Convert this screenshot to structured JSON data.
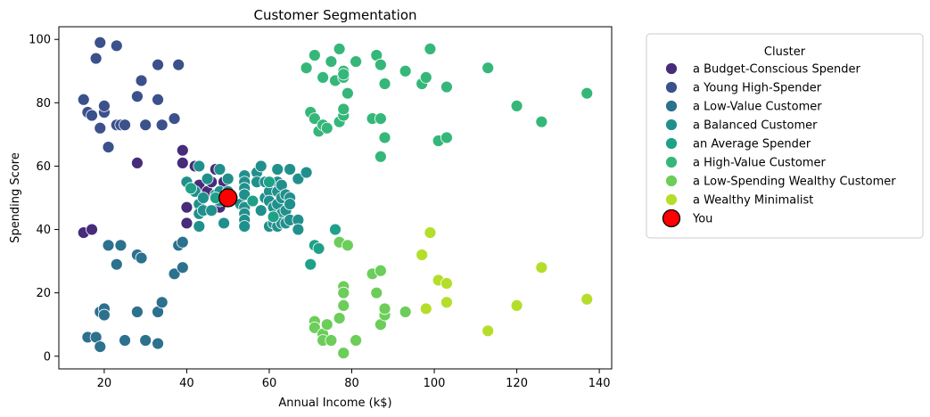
{
  "chart_data": {
    "type": "scatter",
    "title": "Customer Segmentation",
    "xlabel": "Annual Income (k$)",
    "ylabel": "Spending Score",
    "xlim": [
      9,
      143
    ],
    "ylim": [
      -4,
      104
    ],
    "xticks": [
      20,
      40,
      60,
      80,
      100,
      120,
      140
    ],
    "yticks": [
      0,
      20,
      40,
      60,
      80,
      100
    ],
    "grid": false,
    "legend": {
      "title": "Cluster",
      "placement": "outside-right"
    },
    "series": [
      {
        "name": "a Budget-Conscious Spender",
        "color": "#472c7a",
        "points": [
          [
            15,
            39
          ],
          [
            17,
            40
          ],
          [
            28,
            61
          ],
          [
            39,
            65
          ],
          [
            39,
            61
          ],
          [
            40,
            47
          ],
          [
            40,
            42
          ],
          [
            42,
            60
          ],
          [
            43,
            54
          ],
          [
            45,
            52
          ],
          [
            46,
            55
          ],
          [
            47,
            59
          ],
          [
            48,
            47
          ],
          [
            49,
            55
          ]
        ]
      },
      {
        "name": "a Young High-Spender",
        "color": "#3b518b",
        "points": [
          [
            15,
            81
          ],
          [
            16,
            77
          ],
          [
            17,
            76
          ],
          [
            19,
            99
          ],
          [
            18,
            94
          ],
          [
            19,
            72
          ],
          [
            20,
            77
          ],
          [
            20,
            79
          ],
          [
            21,
            66
          ],
          [
            23,
            98
          ],
          [
            23,
            73
          ],
          [
            24,
            73
          ],
          [
            25,
            73
          ],
          [
            28,
            82
          ],
          [
            29,
            87
          ],
          [
            30,
            73
          ],
          [
            33,
            92
          ],
          [
            33,
            81
          ],
          [
            34,
            73
          ],
          [
            37,
            75
          ],
          [
            38,
            92
          ]
        ]
      },
      {
        "name": "a Low-Value Customer",
        "color": "#2c718e",
        "points": [
          [
            16,
            6
          ],
          [
            18,
            6
          ],
          [
            19,
            3
          ],
          [
            19,
            14
          ],
          [
            20,
            15
          ],
          [
            20,
            13
          ],
          [
            21,
            35
          ],
          [
            23,
            29
          ],
          [
            24,
            35
          ],
          [
            25,
            5
          ],
          [
            28,
            32
          ],
          [
            28,
            14
          ],
          [
            29,
            31
          ],
          [
            30,
            5
          ],
          [
            33,
            4
          ],
          [
            33,
            14
          ],
          [
            34,
            17
          ],
          [
            37,
            26
          ],
          [
            38,
            35
          ],
          [
            39,
            36
          ],
          [
            39,
            28
          ]
        ]
      },
      {
        "name": "a Balanced Customer",
        "color": "#21908d",
        "points": [
          [
            40,
            55
          ],
          [
            42,
            52
          ],
          [
            43,
            60
          ],
          [
            43,
            48
          ],
          [
            43,
            45
          ],
          [
            43,
            41
          ],
          [
            44,
            50
          ],
          [
            44,
            46
          ],
          [
            45,
            56
          ],
          [
            46,
            46
          ],
          [
            47,
            51
          ],
          [
            48,
            50
          ],
          [
            48,
            52
          ],
          [
            48,
            49
          ],
          [
            48,
            59
          ],
          [
            49,
            42
          ],
          [
            50,
            56
          ],
          [
            50,
            52
          ],
          [
            51,
            50
          ],
          [
            53,
            48
          ],
          [
            54,
            57
          ],
          [
            54,
            55
          ],
          [
            54,
            53
          ],
          [
            54,
            51
          ],
          [
            54,
            47
          ],
          [
            54,
            45
          ],
          [
            54,
            43
          ],
          [
            54,
            41
          ],
          [
            57,
            58
          ],
          [
            57,
            55
          ],
          [
            58,
            60
          ],
          [
            58,
            46
          ],
          [
            59,
            55
          ],
          [
            59,
            50
          ],
          [
            60,
            52
          ],
          [
            60,
            49
          ],
          [
            60,
            41
          ],
          [
            61,
            47
          ],
          [
            61,
            42
          ],
          [
            62,
            59
          ],
          [
            62,
            55
          ],
          [
            62,
            52
          ],
          [
            62,
            48
          ],
          [
            62,
            41
          ],
          [
            63,
            54
          ],
          [
            63,
            50
          ],
          [
            63,
            45
          ],
          [
            63,
            42
          ],
          [
            64,
            51
          ],
          [
            64,
            46
          ],
          [
            64,
            42
          ],
          [
            65,
            59
          ],
          [
            65,
            50
          ],
          [
            65,
            48
          ],
          [
            65,
            43
          ],
          [
            67,
            56
          ],
          [
            67,
            43
          ],
          [
            67,
            40
          ],
          [
            69,
            58
          ]
        ]
      },
      {
        "name": "an Average Spender",
        "color": "#1fa188",
        "points": [
          [
            41,
            53
          ],
          [
            47,
            50
          ],
          [
            56,
            49
          ],
          [
            60,
            55
          ],
          [
            61,
            44
          ],
          [
            70,
            29
          ],
          [
            71,
            35
          ],
          [
            72,
            34
          ],
          [
            76,
            40
          ]
        ]
      },
      {
        "name": "a High-Value Customer",
        "color": "#35b779",
        "points": [
          [
            69,
            91
          ],
          [
            70,
            77
          ],
          [
            71,
            95
          ],
          [
            71,
            75
          ],
          [
            72,
            71
          ],
          [
            73,
            88
          ],
          [
            73,
            73
          ],
          [
            74,
            72
          ],
          [
            75,
            93
          ],
          [
            76,
            87
          ],
          [
            77,
            97
          ],
          [
            77,
            74
          ],
          [
            78,
            90
          ],
          [
            78,
            88
          ],
          [
            78,
            89
          ],
          [
            78,
            76
          ],
          [
            78,
            78
          ],
          [
            79,
            83
          ],
          [
            81,
            93
          ],
          [
            85,
            75
          ],
          [
            86,
            95
          ],
          [
            87,
            92
          ],
          [
            87,
            75
          ],
          [
            87,
            63
          ],
          [
            88,
            86
          ],
          [
            88,
            69
          ],
          [
            93,
            90
          ],
          [
            97,
            86
          ],
          [
            98,
            88
          ],
          [
            99,
            97
          ],
          [
            101,
            68
          ],
          [
            103,
            85
          ],
          [
            103,
            69
          ],
          [
            113,
            91
          ],
          [
            120,
            79
          ],
          [
            126,
            74
          ],
          [
            137,
            83
          ]
        ]
      },
      {
        "name": "a Low-Spending Wealthy Customer",
        "color": "#6ccd5a",
        "points": [
          [
            71,
            11
          ],
          [
            71,
            9
          ],
          [
            73,
            7
          ],
          [
            73,
            5
          ],
          [
            74,
            10
          ],
          [
            75,
            5
          ],
          [
            77,
            12
          ],
          [
            77,
            36
          ],
          [
            78,
            22
          ],
          [
            78,
            20
          ],
          [
            78,
            16
          ],
          [
            78,
            1
          ],
          [
            79,
            35
          ],
          [
            81,
            5
          ],
          [
            85,
            26
          ],
          [
            86,
            20
          ],
          [
            87,
            27
          ],
          [
            87,
            10
          ],
          [
            88,
            13
          ],
          [
            88,
            15
          ],
          [
            93,
            14
          ]
        ]
      },
      {
        "name": "a Wealthy Minimalist",
        "color": "#b5de2b",
        "points": [
          [
            97,
            32
          ],
          [
            98,
            15
          ],
          [
            99,
            39
          ],
          [
            101,
            24
          ],
          [
            103,
            23
          ],
          [
            103,
            17
          ],
          [
            113,
            8
          ],
          [
            120,
            16
          ],
          [
            126,
            28
          ],
          [
            137,
            18
          ]
        ]
      },
      {
        "name": "You",
        "color": "#ff0000",
        "points": [
          [
            50,
            50
          ]
        ]
      }
    ]
  }
}
